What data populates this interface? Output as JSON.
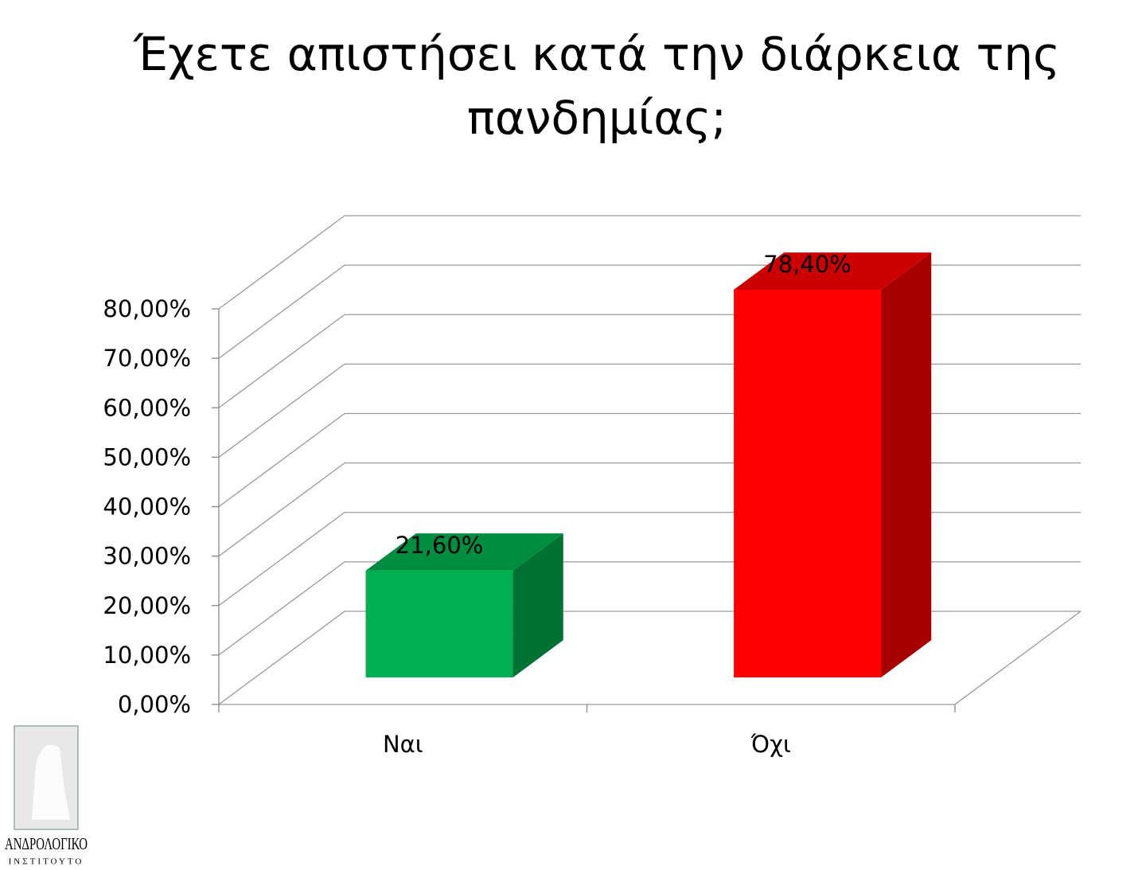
{
  "chart_data": {
    "type": "bar3d",
    "title": "Έχετε απιστήσει κατά την διάρκεια της πανδημίας;",
    "categories": [
      "Ναι",
      "Όχι"
    ],
    "values": [
      21.6,
      78.4
    ],
    "value_labels": [
      "21,60%",
      "78,40%"
    ],
    "colors": [
      "#00b050",
      "#ff0000"
    ],
    "ylim": [
      0,
      80
    ],
    "yticks": [
      {
        "value": 0,
        "label": "0,00%"
      },
      {
        "value": 10,
        "label": "10,00%"
      },
      {
        "value": 20,
        "label": "20,00%"
      },
      {
        "value": 30,
        "label": "30,00%"
      },
      {
        "value": 40,
        "label": "40,00%"
      },
      {
        "value": 50,
        "label": "50,00%"
      },
      {
        "value": 60,
        "label": "60,00%"
      },
      {
        "value": 70,
        "label": "70,00%"
      },
      {
        "value": 80,
        "label": "80,00%"
      }
    ],
    "grid": true
  },
  "logo": {
    "line1": "ΑΝΔΡΟΛΟΓΙΚΟ",
    "line2": "ΙΝΣΤΙΤΟΥΤΟ"
  }
}
